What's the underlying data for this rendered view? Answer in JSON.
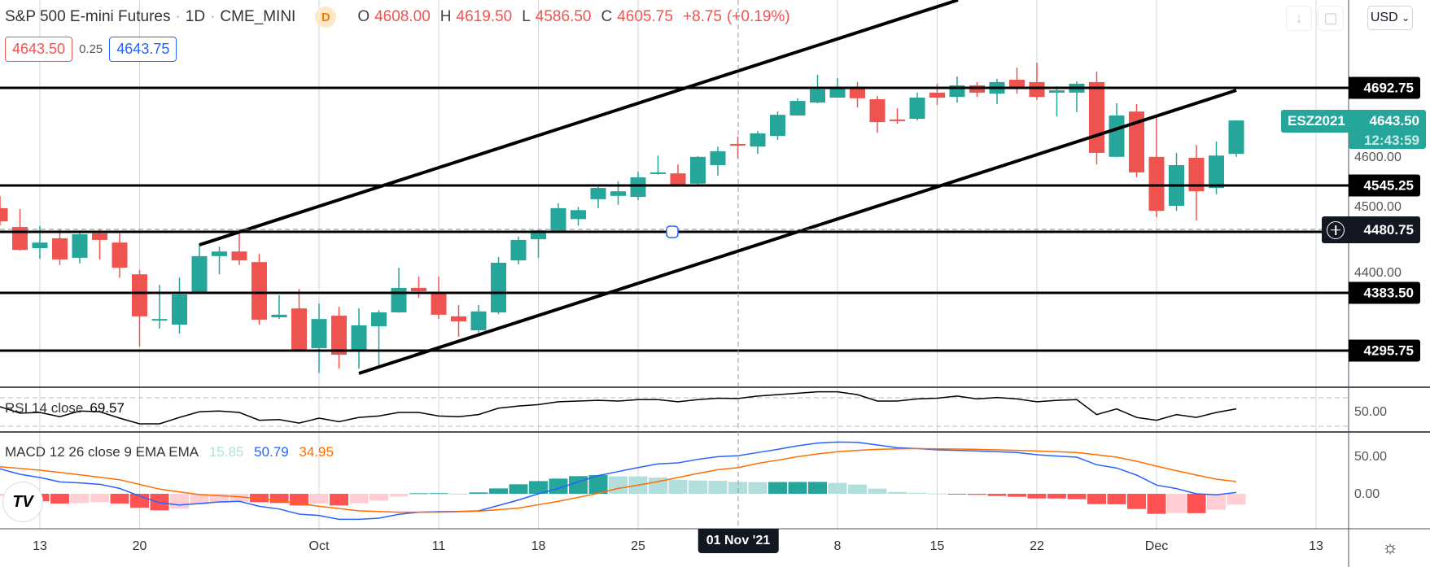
{
  "header": {
    "symbol": "S&P 500 E-mini Futures",
    "interval": "1D",
    "exchange": "CME_MINI",
    "badge": "D",
    "open_label": "O",
    "open": "4608.00",
    "high_label": "H",
    "high": "4619.50",
    "low_label": "L",
    "low": "4586.50",
    "close_label": "C",
    "close": "4605.75",
    "change": "+8.75",
    "change_pct": "(+0.19%)",
    "sell_price": "4643.50",
    "spread": "0.25",
    "buy_price": "4643.75"
  },
  "toolbar": {
    "download_icon": "arrow-down-icon",
    "fullscreen_icon": "square-icon",
    "currency": "USD",
    "currency_caret": "⌄"
  },
  "price_axis": {
    "ticks": [
      "4600.00",
      "4500.00",
      "4400.00"
    ],
    "levels": [
      "4692.75",
      "4545.25",
      "4383.50",
      "4295.75"
    ],
    "crosshair_price": "4480.75",
    "last_symbol": "ESZ2021",
    "last_price": "4643.50",
    "countdown": "12:43:59"
  },
  "rsi": {
    "label": "RSI 14 close",
    "value": "69.57",
    "axis_tick": "50.00",
    "values": [
      58,
      49,
      50,
      44,
      52,
      51,
      42,
      34,
      34,
      43,
      51,
      52,
      50,
      39,
      40,
      35,
      42,
      37,
      43,
      45,
      50,
      50,
      45,
      44,
      47,
      56,
      59,
      61,
      65,
      66,
      67,
      66,
      68,
      68,
      65,
      68,
      70,
      69.57,
      73,
      75,
      77,
      79,
      79,
      75,
      66,
      66,
      69,
      70,
      73,
      69,
      71,
      69,
      65,
      67,
      68,
      47,
      55,
      43,
      39,
      47,
      43,
      50,
      55
    ]
  },
  "macd": {
    "label": "MACD 12 26 close 9 EMA EMA",
    "hist_value": "15.85",
    "macd_value": "50.79",
    "signal_value": "34.95",
    "axis_ticks": [
      "50.00",
      "0.00"
    ],
    "colors": {
      "hist_up_strong": "#26a69a",
      "hist_up_weak": "#b2dfdb",
      "hist_down_strong": "#ff5252",
      "hist_down_weak": "#ffcdd2",
      "macd": "#2962ff",
      "signal": "#ff6d00"
    },
    "histogram": [
      -3,
      -4,
      -10,
      -13,
      -12.3,
      -11.2,
      -13,
      -18.8,
      -22.1,
      -19.9,
      -14.5,
      -12,
      -10.9,
      -11.2,
      -12.3,
      -15.6,
      -13,
      -15.6,
      -12.7,
      -9.1,
      -3.6,
      0.7,
      0.8,
      0.1,
      1.8,
      7.2,
      12.7,
      17,
      20.3,
      23.6,
      25,
      23.2,
      23.2,
      21.7,
      18.8,
      17.8,
      17.4,
      15.85,
      15.6,
      15.7,
      15.8,
      15.9,
      14.5,
      12.3,
      6.9,
      2.5,
      1.4,
      0.4,
      -0.4,
      -1.4,
      -2.9,
      -4,
      -6.2,
      -6.3,
      -7.2,
      -13.8,
      -14,
      -20.3,
      -26.8,
      -25.7,
      -25.9,
      -21.4,
      -14.5
    ],
    "macd_line": [
      33.3,
      26.1,
      21.7,
      15.9,
      14.5,
      12.7,
      7.2,
      -2.9,
      -12,
      -14.9,
      -13,
      -10.9,
      -10.1,
      -16.7,
      -20.3,
      -27.2,
      -29,
      -34.1,
      -34.1,
      -32.6,
      -27.5,
      -24.6,
      -23.9,
      -23.6,
      -22.8,
      -15.6,
      -8.3,
      0,
      7.2,
      15.9,
      24.3,
      29.7,
      35.1,
      39.9,
      41.3,
      46,
      49.6,
      50.79,
      55.1,
      59.4,
      64.1,
      67.8,
      69.2,
      68.8,
      65.2,
      61.6,
      60.5,
      58.7,
      58,
      57.2,
      56.2,
      55.1,
      52.2,
      50.4,
      48.9,
      38.8,
      34.4,
      25,
      11.6,
      6.9,
      0,
      -1.4,
      1.8
    ],
    "signal_line": [
      36.2,
      33.9,
      31.5,
      28.5,
      25.4,
      22.1,
      18.8,
      12.5,
      6.2,
      2.5,
      -1.1,
      -2.5,
      -4,
      -6.5,
      -9.1,
      -12.9,
      -16.7,
      -19.7,
      -22.8,
      -23.7,
      -24.6,
      -24.6,
      -24.6,
      -23.9,
      -23.2,
      -21.2,
      -19.2,
      -14.6,
      -10.1,
      -4.7,
      0.7,
      7.2,
      11.6,
      16.3,
      21.7,
      27.2,
      32.2,
      34.95,
      40.6,
      44.9,
      49.6,
      53.3,
      56.2,
      58,
      59.4,
      60.1,
      60.5,
      60.1,
      59.8,
      59.4,
      58.7,
      58,
      57.2,
      56.2,
      55.1,
      52.2,
      48.9,
      43.5,
      37,
      30.8,
      25,
      19.6,
      16.3
    ]
  },
  "time_axis": {
    "labels": [
      {
        "text": "13",
        "bar": 2
      },
      {
        "text": "20",
        "bar": 7
      },
      {
        "text": "Oct",
        "bar": 16
      },
      {
        "text": "11",
        "bar": 22
      },
      {
        "text": "18",
        "bar": 27
      },
      {
        "text": "25",
        "bar": 32
      },
      {
        "text": "8",
        "bar": 42
      },
      {
        "text": "15",
        "bar": 47
      },
      {
        "text": "22",
        "bar": 52
      },
      {
        "text": "Dec",
        "bar": 58
      },
      {
        "text": "13",
        "bar": 66
      }
    ],
    "crosshair_date": "01 Nov '21",
    "crosshair_bar": 37
  },
  "colors": {
    "up": "#26a69a",
    "down": "#ef5350",
    "level_line": "#000000"
  },
  "chart_data": {
    "type": "candlestick",
    "title": "S&P 500 E-mini Futures · 1D · CME_MINI",
    "ylabel": "USD",
    "ylim": [
      4250,
      4760
    ],
    "candles_ohlc": [
      [
        4511,
        4529,
        4485,
        4491
      ],
      [
        4482.5,
        4509.5,
        4447,
        4448
      ],
      [
        4450.5,
        4484,
        4434.5,
        4459
      ],
      [
        4465.5,
        4479,
        4425,
        4433.5
      ],
      [
        4436,
        4477.5,
        4427.5,
        4471.5
      ],
      [
        4473,
        4479,
        4433.5,
        4463
      ],
      [
        4459,
        4473,
        4406,
        4421
      ],
      [
        4411,
        4417.5,
        4302,
        4347.5
      ],
      [
        4341.5,
        4395,
        4329,
        4343.5
      ],
      [
        4335,
        4406,
        4321.5,
        4380.5
      ],
      [
        4384.5,
        4457,
        4384,
        4438.5
      ],
      [
        4438.5,
        4453,
        4411,
        4445.5
      ],
      [
        4445.5,
        4473,
        4425,
        4432
      ],
      [
        4429.5,
        4442,
        4335,
        4342.5
      ],
      [
        4346,
        4379.5,
        4343.5,
        4350
      ],
      [
        4359.5,
        4389,
        4295,
        4297
      ],
      [
        4299.5,
        4367,
        4262,
        4343.5
      ],
      [
        4348.5,
        4362,
        4268.5,
        4289.5
      ],
      [
        4297,
        4359.5,
        4268.5,
        4334
      ],
      [
        4332.5,
        4357,
        4273.5,
        4353.5
      ],
      [
        4353.5,
        4421,
        4353,
        4390.5
      ],
      [
        4390.5,
        4407.5,
        4375.5,
        4385.5
      ],
      [
        4382,
        4407.5,
        4343.5,
        4350
      ],
      [
        4347.5,
        4364.5,
        4316.5,
        4340
      ],
      [
        4326.5,
        4364.5,
        4323,
        4355
      ],
      [
        4353.5,
        4437,
        4351,
        4428.5
      ],
      [
        4432,
        4468,
        4426,
        4463
      ],
      [
        4464,
        4477.5,
        4436,
        4477.5
      ],
      [
        4476.5,
        4518.5,
        4473,
        4511
      ],
      [
        4494.5,
        4513,
        4484.5,
        4508
      ],
      [
        4524.5,
        4543,
        4511,
        4541.5
      ],
      [
        4529.5,
        4551.5,
        4516,
        4536.5
      ],
      [
        4528,
        4566,
        4523,
        4557.5
      ],
      [
        4564,
        4590.5,
        4561.5,
        4565
      ],
      [
        4563.5,
        4577,
        4546,
        4546.5
      ],
      [
        4548,
        4589.5,
        4546.5,
        4588.5
      ],
      [
        4576,
        4604,
        4560,
        4597
      ],
      [
        4608,
        4619.5,
        4586.5,
        4605.75
      ],
      [
        4604,
        4627.5,
        4593,
        4624
      ],
      [
        4620,
        4657,
        4614,
        4652
      ],
      [
        4651,
        4677,
        4651,
        4673
      ],
      [
        4670.5,
        4712.5,
        4669.5,
        4690.5
      ],
      [
        4678,
        4707.5,
        4678,
        4691.5
      ],
      [
        4691.5,
        4701.5,
        4663,
        4677
      ],
      [
        4675.5,
        4680.5,
        4625,
        4641
      ],
      [
        4645,
        4662,
        4638.5,
        4642.5
      ],
      [
        4646,
        4685.5,
        4643.5,
        4678
      ],
      [
        4685.5,
        4699,
        4667,
        4678
      ],
      [
        4679,
        4710,
        4670.5,
        4696.5
      ],
      [
        4696.5,
        4701.5,
        4679,
        4685.5
      ],
      [
        4684,
        4706.5,
        4668,
        4701.5
      ],
      [
        4705,
        4723.5,
        4684,
        4694
      ],
      [
        4701.5,
        4731,
        4674.5,
        4679
      ],
      [
        4685.5,
        4695,
        4649.5,
        4689
      ],
      [
        4685.5,
        4702.5,
        4656,
        4699
      ],
      [
        4701.5,
        4717.5,
        4577,
        4594.5
      ],
      [
        4588.5,
        4669.5,
        4588,
        4651
      ],
      [
        4657,
        4668,
        4557.5,
        4565
      ],
      [
        4588.5,
        4649.5,
        4497.5,
        4507
      ],
      [
        4514.5,
        4594.5,
        4507,
        4576
      ],
      [
        4587,
        4606.5,
        4492.5,
        4536.5
      ],
      [
        4541.5,
        4611.5,
        4532,
        4590.5
      ],
      [
        4593,
        4643.75,
        4588.5,
        4643.5
      ]
    ],
    "horizontal_levels": [
      4692.75,
      4545.25,
      4480.75,
      4383.5,
      4295.75
    ],
    "trend_channel": "ascending parallel channel"
  }
}
